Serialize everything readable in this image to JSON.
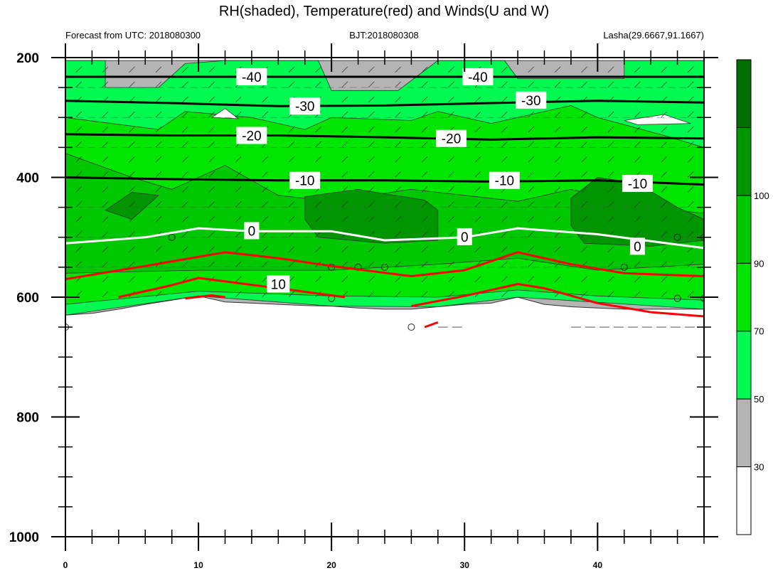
{
  "title": "RH(shaded), Temperature(red) and Winds(U and W)",
  "subtitles": {
    "left": "Forecast from UTC: 2018080300",
    "center": "BJT:2018080308",
    "right": "Lasha(29.6667,91.1667)"
  },
  "chart_data": {
    "type": "heatmap",
    "title": "RH(shaded), Temperature(red) and Winds(U and W)",
    "xlim": [
      0,
      48
    ],
    "ylim": [
      200,
      1000
    ],
    "x_ticks": [
      "0",
      "10",
      "20",
      "30",
      "40"
    ],
    "x_tick_values": [
      0,
      10,
      20,
      30,
      40
    ],
    "y_ticks": [
      "200",
      "400",
      "600",
      "800",
      "1000"
    ],
    "y_tick_values": [
      200,
      400,
      600,
      800,
      1000
    ],
    "grid_levels": [
      250,
      300,
      350,
      450,
      500,
      550
    ],
    "colorbar": {
      "levels": [
        "30",
        "50",
        "70",
        "90",
        "100"
      ],
      "colors": [
        "#ffffff",
        "#b4b4b4",
        "#00fa50",
        "#00e600",
        "#00c800",
        "#009600",
        "#006e00"
      ]
    },
    "surface_pressure": [
      [
        0,
        630
      ],
      [
        2,
        627
      ],
      [
        4,
        620
      ],
      [
        6,
        612
      ],
      [
        8,
        605
      ],
      [
        10,
        598
      ],
      [
        12,
        608
      ],
      [
        14,
        610
      ],
      [
        16,
        612
      ],
      [
        18,
        614
      ],
      [
        20,
        615
      ],
      [
        22,
        618
      ],
      [
        24,
        620
      ],
      [
        26,
        620
      ],
      [
        28,
        616
      ],
      [
        30,
        612
      ],
      [
        32,
        610
      ],
      [
        34,
        600
      ],
      [
        36,
        612
      ],
      [
        38,
        616
      ],
      [
        40,
        618
      ],
      [
        42,
        620
      ],
      [
        44,
        620
      ],
      [
        46,
        620
      ],
      [
        48,
        620
      ]
    ],
    "rh_regions": [
      {
        "level": "30",
        "points": [
          [
            0,
            205
          ],
          [
            48,
            205
          ],
          [
            48,
            630
          ],
          [
            0,
            630
          ]
        ]
      },
      {
        "level": "50",
        "points": [
          [
            0,
            205
          ],
          [
            3,
            205
          ],
          [
            3,
            250
          ],
          [
            7,
            250
          ],
          [
            9,
            210
          ],
          [
            12,
            205
          ],
          [
            19,
            205
          ],
          [
            20,
            255
          ],
          [
            25,
            255
          ],
          [
            28,
            205
          ],
          [
            33,
            205
          ],
          [
            34,
            235
          ],
          [
            42,
            235
          ],
          [
            42,
            205
          ],
          [
            48,
            205
          ],
          [
            48,
            620
          ],
          [
            34,
            600
          ],
          [
            28,
            616
          ],
          [
            20,
            615
          ],
          [
            10,
            598
          ],
          [
            0,
            630
          ]
        ]
      },
      {
        "level": "70",
        "points": [
          [
            0,
            300
          ],
          [
            7,
            320
          ],
          [
            9,
            290
          ],
          [
            14,
            300
          ],
          [
            18,
            320
          ],
          [
            20,
            300
          ],
          [
            26,
            305
          ],
          [
            28,
            290
          ],
          [
            32,
            310
          ],
          [
            38,
            280
          ],
          [
            40,
            300
          ],
          [
            45,
            330
          ],
          [
            48,
            350
          ],
          [
            48,
            605
          ],
          [
            40,
            598
          ],
          [
            34,
            588
          ],
          [
            28,
            600
          ],
          [
            20,
            598
          ],
          [
            10,
            590
          ],
          [
            0,
            612
          ]
        ]
      },
      {
        "level": "90",
        "points": [
          [
            0,
            360
          ],
          [
            5,
            400
          ],
          [
            8,
            420
          ],
          [
            12,
            380
          ],
          [
            16,
            430
          ],
          [
            20,
            440
          ],
          [
            26,
            420
          ],
          [
            30,
            430
          ],
          [
            34,
            440
          ],
          [
            38,
            420
          ],
          [
            44,
            450
          ],
          [
            48,
            460
          ],
          [
            48,
            545
          ],
          [
            40,
            555
          ],
          [
            34,
            535
          ],
          [
            28,
            545
          ],
          [
            20,
            555
          ],
          [
            10,
            555
          ],
          [
            0,
            560
          ]
        ]
      },
      {
        "level": "100",
        "points": [
          [
            18,
            432
          ],
          [
            22,
            420
          ],
          [
            27,
            438
          ],
          [
            28,
            455
          ],
          [
            28,
            505
          ],
          [
            24,
            510
          ],
          [
            19,
            500
          ],
          [
            18,
            470
          ]
        ]
      },
      {
        "level": "100",
        "points": [
          [
            38,
            435
          ],
          [
            40,
            400
          ],
          [
            43,
            410
          ],
          [
            46,
            450
          ],
          [
            48,
            470
          ],
          [
            48,
            505
          ],
          [
            44,
            515
          ],
          [
            39,
            510
          ],
          [
            38,
            480
          ]
        ]
      },
      {
        "level": "100",
        "points": [
          [
            3,
            455
          ],
          [
            5,
            425
          ],
          [
            7,
            430
          ],
          [
            5,
            470
          ]
        ]
      }
    ],
    "white_pockets": [
      {
        "points": [
          [
            11,
            300
          ],
          [
            12,
            285
          ],
          [
            13,
            302
          ]
        ]
      },
      {
        "points": [
          [
            42,
            305
          ],
          [
            45,
            295
          ],
          [
            47,
            310
          ],
          [
            43,
            312
          ]
        ]
      }
    ],
    "temperature_contours": [
      {
        "label": "-40",
        "color": "black",
        "labels_at": [
          [
            14,
            232
          ],
          [
            31,
            232
          ]
        ],
        "points": [
          [
            0,
            232
          ],
          [
            8,
            232
          ],
          [
            16,
            232
          ],
          [
            24,
            232
          ],
          [
            32,
            232
          ],
          [
            40,
            232
          ],
          [
            48,
            232
          ]
        ]
      },
      {
        "label": "-30",
        "color": "black",
        "labels_at": [
          [
            18,
            281
          ],
          [
            35,
            271
          ]
        ],
        "points": [
          [
            0,
            272
          ],
          [
            8,
            276
          ],
          [
            16,
            281
          ],
          [
            24,
            280
          ],
          [
            32,
            276
          ],
          [
            40,
            272
          ],
          [
            48,
            275
          ]
        ]
      },
      {
        "label": "-20",
        "color": "black",
        "labels_at": [
          [
            14,
            330
          ],
          [
            29,
            335
          ]
        ],
        "points": [
          [
            0,
            328
          ],
          [
            8,
            330
          ],
          [
            16,
            330
          ],
          [
            24,
            333
          ],
          [
            32,
            337
          ],
          [
            40,
            333
          ],
          [
            48,
            335
          ]
        ]
      },
      {
        "label": "-10",
        "color": "black",
        "labels_at": [
          [
            18,
            405
          ],
          [
            33,
            405
          ],
          [
            43,
            410
          ]
        ],
        "points": [
          [
            0,
            400
          ],
          [
            8,
            403
          ],
          [
            16,
            405
          ],
          [
            24,
            405
          ],
          [
            32,
            407
          ],
          [
            40,
            405
          ],
          [
            48,
            412
          ]
        ]
      },
      {
        "label": "0",
        "color": "white",
        "labels_at": [
          [
            14,
            489
          ],
          [
            30,
            499
          ],
          [
            43,
            515
          ]
        ],
        "points": [
          [
            0,
            510
          ],
          [
            6,
            500
          ],
          [
            10,
            485
          ],
          [
            14,
            490
          ],
          [
            20,
            490
          ],
          [
            24,
            505
          ],
          [
            30,
            500
          ],
          [
            34,
            485
          ],
          [
            40,
            495
          ],
          [
            48,
            518
          ]
        ]
      },
      {
        "label": "10",
        "color": "red",
        "labels_at": [
          [
            16,
            578
          ]
        ],
        "points": [
          [
            0,
            570
          ],
          [
            6,
            548
          ],
          [
            12,
            525
          ],
          [
            16,
            535
          ],
          [
            20,
            548
          ],
          [
            26,
            565
          ],
          [
            30,
            555
          ],
          [
            34,
            525
          ],
          [
            38,
            545
          ],
          [
            42,
            560
          ],
          [
            48,
            565
          ]
        ]
      },
      {
        "label": "",
        "color": "red",
        "labels_at": [],
        "points": [
          [
            4,
            600
          ],
          [
            8,
            580
          ],
          [
            10,
            568
          ],
          [
            16,
            585
          ],
          [
            20,
            597
          ],
          [
            21,
            600
          ]
        ]
      },
      {
        "label": "",
        "color": "red",
        "labels_at": [],
        "points": [
          [
            9,
            602
          ],
          [
            11,
            597
          ],
          [
            12,
            600
          ]
        ]
      },
      {
        "label": "",
        "color": "red",
        "labels_at": [],
        "points": [
          [
            26,
            615
          ],
          [
            30,
            598
          ],
          [
            34,
            578
          ],
          [
            36,
            585
          ],
          [
            40,
            610
          ],
          [
            44,
            625
          ],
          [
            48,
            632
          ]
        ]
      },
      {
        "label": "",
        "color": "red",
        "labels_at": [],
        "points": [
          [
            27,
            650
          ],
          [
            28,
            642
          ]
        ]
      }
    ],
    "wind_circles": [
      [
        0,
        650
      ],
      [
        8,
        500
      ],
      [
        20,
        550
      ],
      [
        20,
        602
      ],
      [
        22,
        550
      ],
      [
        24,
        550
      ],
      [
        26,
        650
      ],
      [
        42,
        550
      ],
      [
        46,
        500
      ],
      [
        46,
        602
      ],
      [
        48,
        500
      ],
      [
        48,
        602
      ]
    ]
  },
  "colors": {
    "red_contour": "#ff0000",
    "black_contour": "#000000",
    "white_contour": "#ffffff"
  }
}
